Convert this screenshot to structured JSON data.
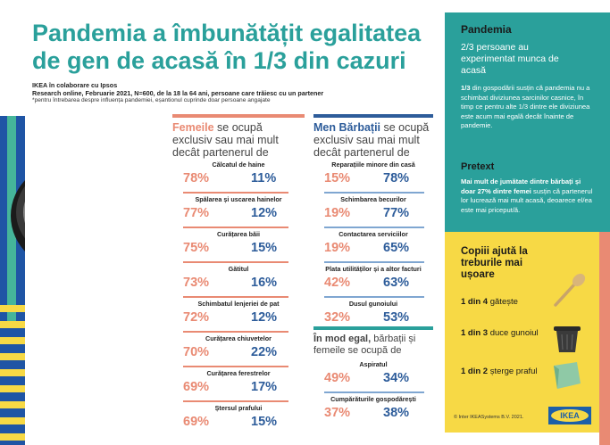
{
  "title": "Pandemia a îmbunătățit egalitatea de gen de acasă în 1/3 din cazuri",
  "source_line1": "IKEA în colaborare cu Ipsos",
  "source_line2": "Research online, Februarie 2021, N=600, de la 18 la 64 ani, persoane care trăiesc cu un partener",
  "source_note": "*pentru întrebarea despre influența pandemiei, eșantionul cuprinde doar persoane angajate",
  "colors": {
    "teal": "#2aa09b",
    "coral": "#e98a73",
    "blue": "#2d5c9a",
    "yellow": "#f7d945"
  },
  "women": {
    "head_em": "Femeile",
    "head_rest": " se ocupă exclusiv sau mai mult decât partenerul de",
    "items": [
      {
        "label": "Călcatul de haine",
        "v1": "78%",
        "v2": "11%"
      },
      {
        "label": "Spălarea și uscarea hainelor",
        "v1": "77%",
        "v2": "12%"
      },
      {
        "label": "Curățarea băii",
        "v1": "75%",
        "v2": "15%"
      },
      {
        "label": "Gătitul",
        "v1": "73%",
        "v2": "16%"
      },
      {
        "label": "Schimbatul lenjeriei de pat",
        "v1": "72%",
        "v2": "12%"
      },
      {
        "label": "Curățarea chiuvetelor",
        "v1": "70%",
        "v2": "22%"
      },
      {
        "label": "Curățarea ferestrelor",
        "v1": "69%",
        "v2": "17%"
      },
      {
        "label": "Ștersul prafului",
        "v1": "69%",
        "v2": "15%"
      }
    ]
  },
  "men": {
    "head_em": "Men Bărbații",
    "head_rest": " se ocupă exclusiv sau mai mult decât partenerul de",
    "items": [
      {
        "label": "Reparațiile minore din casă",
        "v1": "15%",
        "v2": "78%"
      },
      {
        "label": "Schimbarea becurilor",
        "v1": "19%",
        "v2": "77%"
      },
      {
        "label": "Contactarea serviciilor",
        "v1": "19%",
        "v2": "65%"
      },
      {
        "label": "Plata utilităților și a altor facturi",
        "v1": "42%",
        "v2": "63%"
      },
      {
        "label": "Dusul gunoiului",
        "v1": "32%",
        "v2": "53%"
      }
    ]
  },
  "equal": {
    "head_em": "În mod egal,",
    "head_rest": " bărbații și femeile se ocupă de",
    "items": [
      {
        "label": "Aspiratul",
        "v1": "49%",
        "v2": "34%"
      },
      {
        "label": "Cumpărăturile gospodărești",
        "v1": "37%",
        "v2": "38%"
      }
    ]
  },
  "pandemic": {
    "heading": "Pandemia",
    "big": "2/3 persoane au experimentat munca de acasă",
    "para_em": "1/3",
    "para_rest": " din gospodării susțin că pandemia nu a schimbat diviziunea sarcinilor casnice, în timp ce pentru alte 1/3 dintre ele diviziunea este acum mai egală decât înainte de pandemie."
  },
  "pretext": {
    "heading": "Pretext",
    "para_em": "Mai mult de jumătate dintre bărbați și doar 27% dintre femei",
    "para_rest": " susțin că partenerul lor lucrează mai mult acasă, deoarece el/ea este mai priceput/ă."
  },
  "kids": {
    "heading": "Copiii ajută la treburile mai ușoare",
    "chores": [
      {
        "em": "1 din 4",
        "rest": " gătește",
        "icon": "wooden-spoon-icon"
      },
      {
        "em": "1 din 3",
        "rest": " duce gunoiul",
        "icon": "trash-bin-icon"
      },
      {
        "em": "1 din 2",
        "rest": " șterge praful",
        "icon": "cloth-icon"
      }
    ]
  },
  "copyright": "© Inter IKEASystems B.V. 2021.",
  "logo_text": "IKEA"
}
